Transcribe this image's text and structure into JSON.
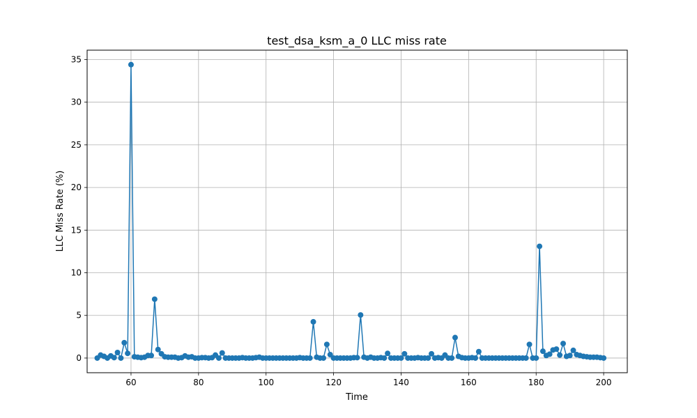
{
  "chart_data": {
    "type": "line",
    "title": "test_dsa_ksm_a_0 LLC miss rate",
    "xlabel": "Time",
    "ylabel": "LLC Miss Rate (%)",
    "xlim": [
      47,
      207
    ],
    "ylim": [
      -1.72,
      36.1
    ],
    "xticks": [
      60,
      80,
      100,
      120,
      140,
      160,
      180,
      200
    ],
    "xtick_labels": [
      "60",
      "80",
      "100",
      "120",
      "140",
      "160",
      "180",
      "200"
    ],
    "yticks": [
      0,
      5,
      10,
      15,
      20,
      25,
      30,
      35
    ],
    "ytick_labels": [
      "0",
      "5",
      "10",
      "15",
      "20",
      "25",
      "30",
      "35"
    ],
    "grid": true,
    "markers": true,
    "series_color": "#1f77b4",
    "x": [
      50,
      51,
      52,
      53,
      54,
      55,
      56,
      57,
      58,
      59,
      60,
      61,
      62,
      63,
      64,
      65,
      66,
      67,
      68,
      69,
      70,
      71,
      72,
      73,
      74,
      75,
      76,
      77,
      78,
      79,
      80,
      81,
      82,
      83,
      84,
      85,
      86,
      87,
      88,
      89,
      90,
      91,
      92,
      93,
      94,
      95,
      96,
      97,
      98,
      99,
      100,
      101,
      102,
      103,
      104,
      105,
      106,
      107,
      108,
      109,
      110,
      111,
      112,
      113,
      114,
      115,
      116,
      117,
      118,
      119,
      120,
      121,
      122,
      123,
      124,
      125,
      126,
      127,
      128,
      129,
      130,
      131,
      132,
      133,
      134,
      135,
      136,
      137,
      138,
      139,
      140,
      141,
      142,
      143,
      144,
      145,
      146,
      147,
      148,
      149,
      150,
      151,
      152,
      153,
      154,
      155,
      156,
      157,
      158,
      159,
      160,
      161,
      162,
      163,
      164,
      165,
      166,
      167,
      168,
      169,
      170,
      171,
      172,
      173,
      174,
      175,
      176,
      177,
      178,
      179,
      180,
      181,
      182,
      183,
      184,
      185,
      186,
      187,
      188,
      189,
      190,
      191,
      192,
      193,
      194,
      195,
      196,
      197,
      198,
      199,
      200
    ],
    "values": [
      0.0,
      0.35,
      0.2,
      0.0,
      0.25,
      0.05,
      0.65,
      0.0,
      1.8,
      0.55,
      34.4,
      0.15,
      0.1,
      0.05,
      0.1,
      0.3,
      0.3,
      6.9,
      1.0,
      0.5,
      0.15,
      0.1,
      0.1,
      0.1,
      0.0,
      0.05,
      0.25,
      0.1,
      0.15,
      0.0,
      0.0,
      0.05,
      0.05,
      0.0,
      0.05,
      0.35,
      0.0,
      0.6,
      0.0,
      0.0,
      0.0,
      0.0,
      0.0,
      0.05,
      0.0,
      0.0,
      0.0,
      0.05,
      0.1,
      0.0,
      0.0,
      0.0,
      0.0,
      0.0,
      0.0,
      0.0,
      0.0,
      0.0,
      0.0,
      0.0,
      0.05,
      0.0,
      0.0,
      0.0,
      4.25,
      0.1,
      0.0,
      0.0,
      1.6,
      0.4,
      0.0,
      0.0,
      0.0,
      0.0,
      0.0,
      0.0,
      0.05,
      0.05,
      5.05,
      0.1,
      0.0,
      0.1,
      0.0,
      0.0,
      0.05,
      0.0,
      0.55,
      0.0,
      0.0,
      0.0,
      0.0,
      0.5,
      0.0,
      0.0,
      0.0,
      0.05,
      0.0,
      0.0,
      0.0,
      0.5,
      0.0,
      0.05,
      0.0,
      0.35,
      0.0,
      0.0,
      2.4,
      0.2,
      0.05,
      0.0,
      0.0,
      0.05,
      0.0,
      0.75,
      0.0,
      0.0,
      0.0,
      0.0,
      0.0,
      0.0,
      0.0,
      0.0,
      0.0,
      0.0,
      0.0,
      0.0,
      0.0,
      0.0,
      1.6,
      0.0,
      0.0,
      13.1,
      0.8,
      0.3,
      0.45,
      0.95,
      1.05,
      0.35,
      1.7,
      0.2,
      0.3,
      0.9,
      0.4,
      0.3,
      0.2,
      0.15,
      0.1,
      0.1,
      0.1,
      0.05,
      0.0
    ]
  }
}
